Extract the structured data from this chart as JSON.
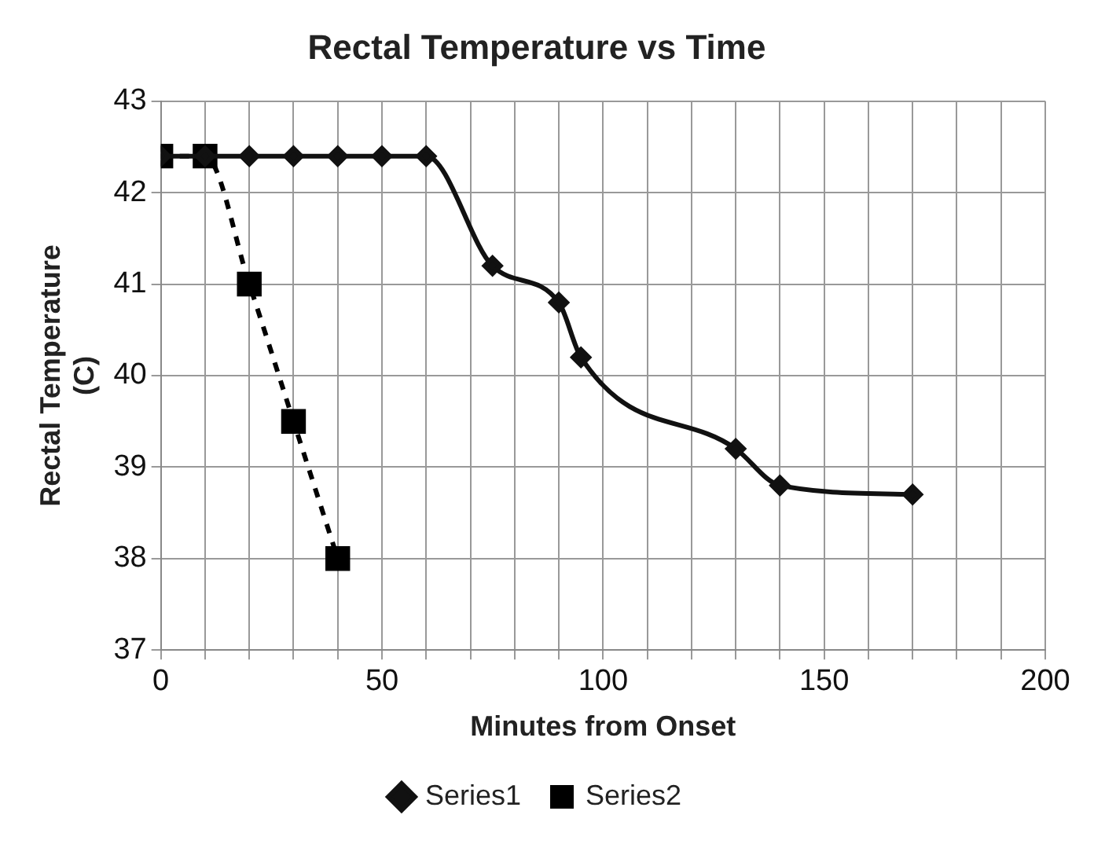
{
  "chart_data": {
    "type": "line",
    "title": "Rectal Temperature vs Time",
    "xlabel": "Minutes from Onset",
    "ylabel": "Rectal Temperature (C)",
    "series": [
      {
        "name": "Series1",
        "color": "#111111",
        "marker": "diamond",
        "line_style": "solid",
        "x": [
          0,
          10,
          20,
          30,
          40,
          50,
          60,
          75,
          90,
          95,
          130,
          140,
          170
        ],
        "values": [
          42.4,
          42.4,
          42.4,
          42.4,
          42.4,
          42.4,
          42.4,
          41.2,
          40.8,
          40.2,
          39.2,
          38.8,
          38.7
        ]
      },
      {
        "name": "Series2",
        "color": "#000000",
        "marker": "square",
        "line_style": "dashed",
        "x": [
          0,
          10,
          20,
          30,
          40
        ],
        "values": [
          42.4,
          42.4,
          41,
          39.5,
          38
        ]
      }
    ],
    "xlim": [
      0,
      200
    ],
    "xticks": [
      0,
      {
        "value": 10,
        "label": null
      },
      {
        "value": 20,
        "label": null
      },
      {
        "value": 30,
        "label": null
      },
      {
        "value": 40,
        "label": null
      },
      50,
      {
        "value": 60,
        "label": null
      },
      {
        "value": 70,
        "label": null
      },
      {
        "value": 80,
        "label": null
      },
      {
        "value": 90,
        "label": null
      },
      100,
      {
        "value": 110,
        "label": null
      },
      {
        "value": 120,
        "label": null
      },
      {
        "value": 130,
        "label": null
      },
      {
        "value": 140,
        "label": null
      },
      150,
      {
        "value": 160,
        "label": null
      },
      {
        "value": 170,
        "label": null
      },
      {
        "value": 180,
        "label": null
      },
      {
        "value": 190,
        "label": null
      },
      200
    ],
    "ylim": [
      37,
      43
    ],
    "yticks": [
      37,
      38,
      39,
      40,
      41,
      42,
      43
    ],
    "grid": true,
    "legend": "bottom"
  }
}
